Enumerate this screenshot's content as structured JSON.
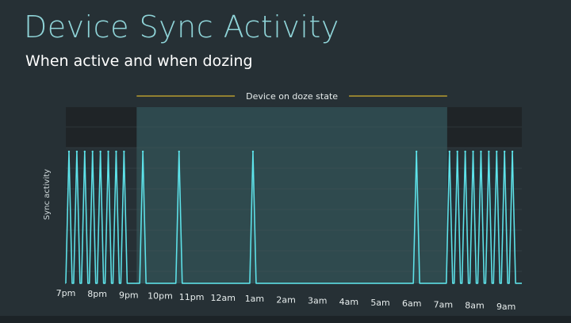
{
  "title": "Device Sync Activity",
  "subtitle": "When active and when dozing",
  "colors": {
    "background": "#263035",
    "title": "#8fd4d8",
    "active_band": "#1f2427",
    "doze_region": "#2f4c50",
    "signal": "#5ee3ea",
    "annotation_line": "#b59a2f",
    "grid": "#4a585e",
    "tick_text": "#e6ecec"
  },
  "chart_data": {
    "type": "line",
    "title": "",
    "xlabel": "",
    "ylabel": "Sync activity",
    "x_ticks": [
      "7pm",
      "8pm",
      "9pm",
      "10pm",
      "11pm",
      "12am",
      "1am",
      "2am",
      "3am",
      "4am",
      "5am",
      "6am",
      "7am",
      "8am",
      "9am"
    ],
    "x_range_hours": [
      19,
      33.5
    ],
    "y_range": [
      0,
      1
    ],
    "doze_region": {
      "label": "Device on doze state",
      "start_hour": 21.0,
      "end_hour": 31.0
    },
    "sync_pulses_hours": [
      19.1,
      19.35,
      19.6,
      19.85,
      20.1,
      20.35,
      20.6,
      20.85,
      21.45,
      22.6,
      24.95,
      30.15,
      31.2,
      31.45,
      31.7,
      31.95,
      32.2,
      32.45,
      32.7,
      32.95,
      33.2
    ],
    "pulse_value": 1,
    "grid": true
  }
}
